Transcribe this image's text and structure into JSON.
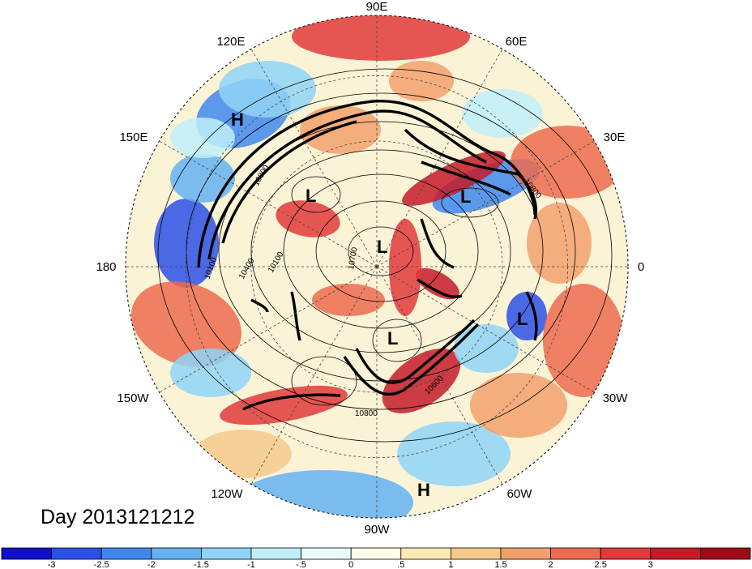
{
  "map": {
    "date_label": "Day 2013121212",
    "longitude_labels": [
      "90E",
      "60E",
      "30E",
      "0",
      "30W",
      "60W",
      "90W",
      "120W",
      "150W",
      "180",
      "150E",
      "120E"
    ],
    "pressure_centers": [
      {
        "type": "H"
      },
      {
        "type": "L"
      },
      {
        "type": "L"
      },
      {
        "type": "L"
      },
      {
        "type": "L"
      },
      {
        "type": "L"
      },
      {
        "type": "H"
      }
    ],
    "contour_labels": [
      "10800",
      "10400",
      "10100",
      "10700",
      "10100",
      "10800",
      "10600",
      "10800"
    ]
  },
  "colorbar": {
    "colors": [
      "#1010c8",
      "#2b50e6",
      "#3f87ee",
      "#64b2f2",
      "#8fd4f7",
      "#c0eefa",
      "#e8fbff",
      "#fffde6",
      "#fbe9b4",
      "#f5c98c",
      "#f2a06c",
      "#ec6b4f",
      "#e03a3c",
      "#c41b29",
      "#9e0a19"
    ],
    "tick_labels": [
      "-3",
      "-2.5",
      "-2",
      "-1.5",
      "-1",
      "-.5",
      "0",
      ".5",
      "1",
      "1.5",
      "2",
      "2.5",
      "3"
    ]
  }
}
